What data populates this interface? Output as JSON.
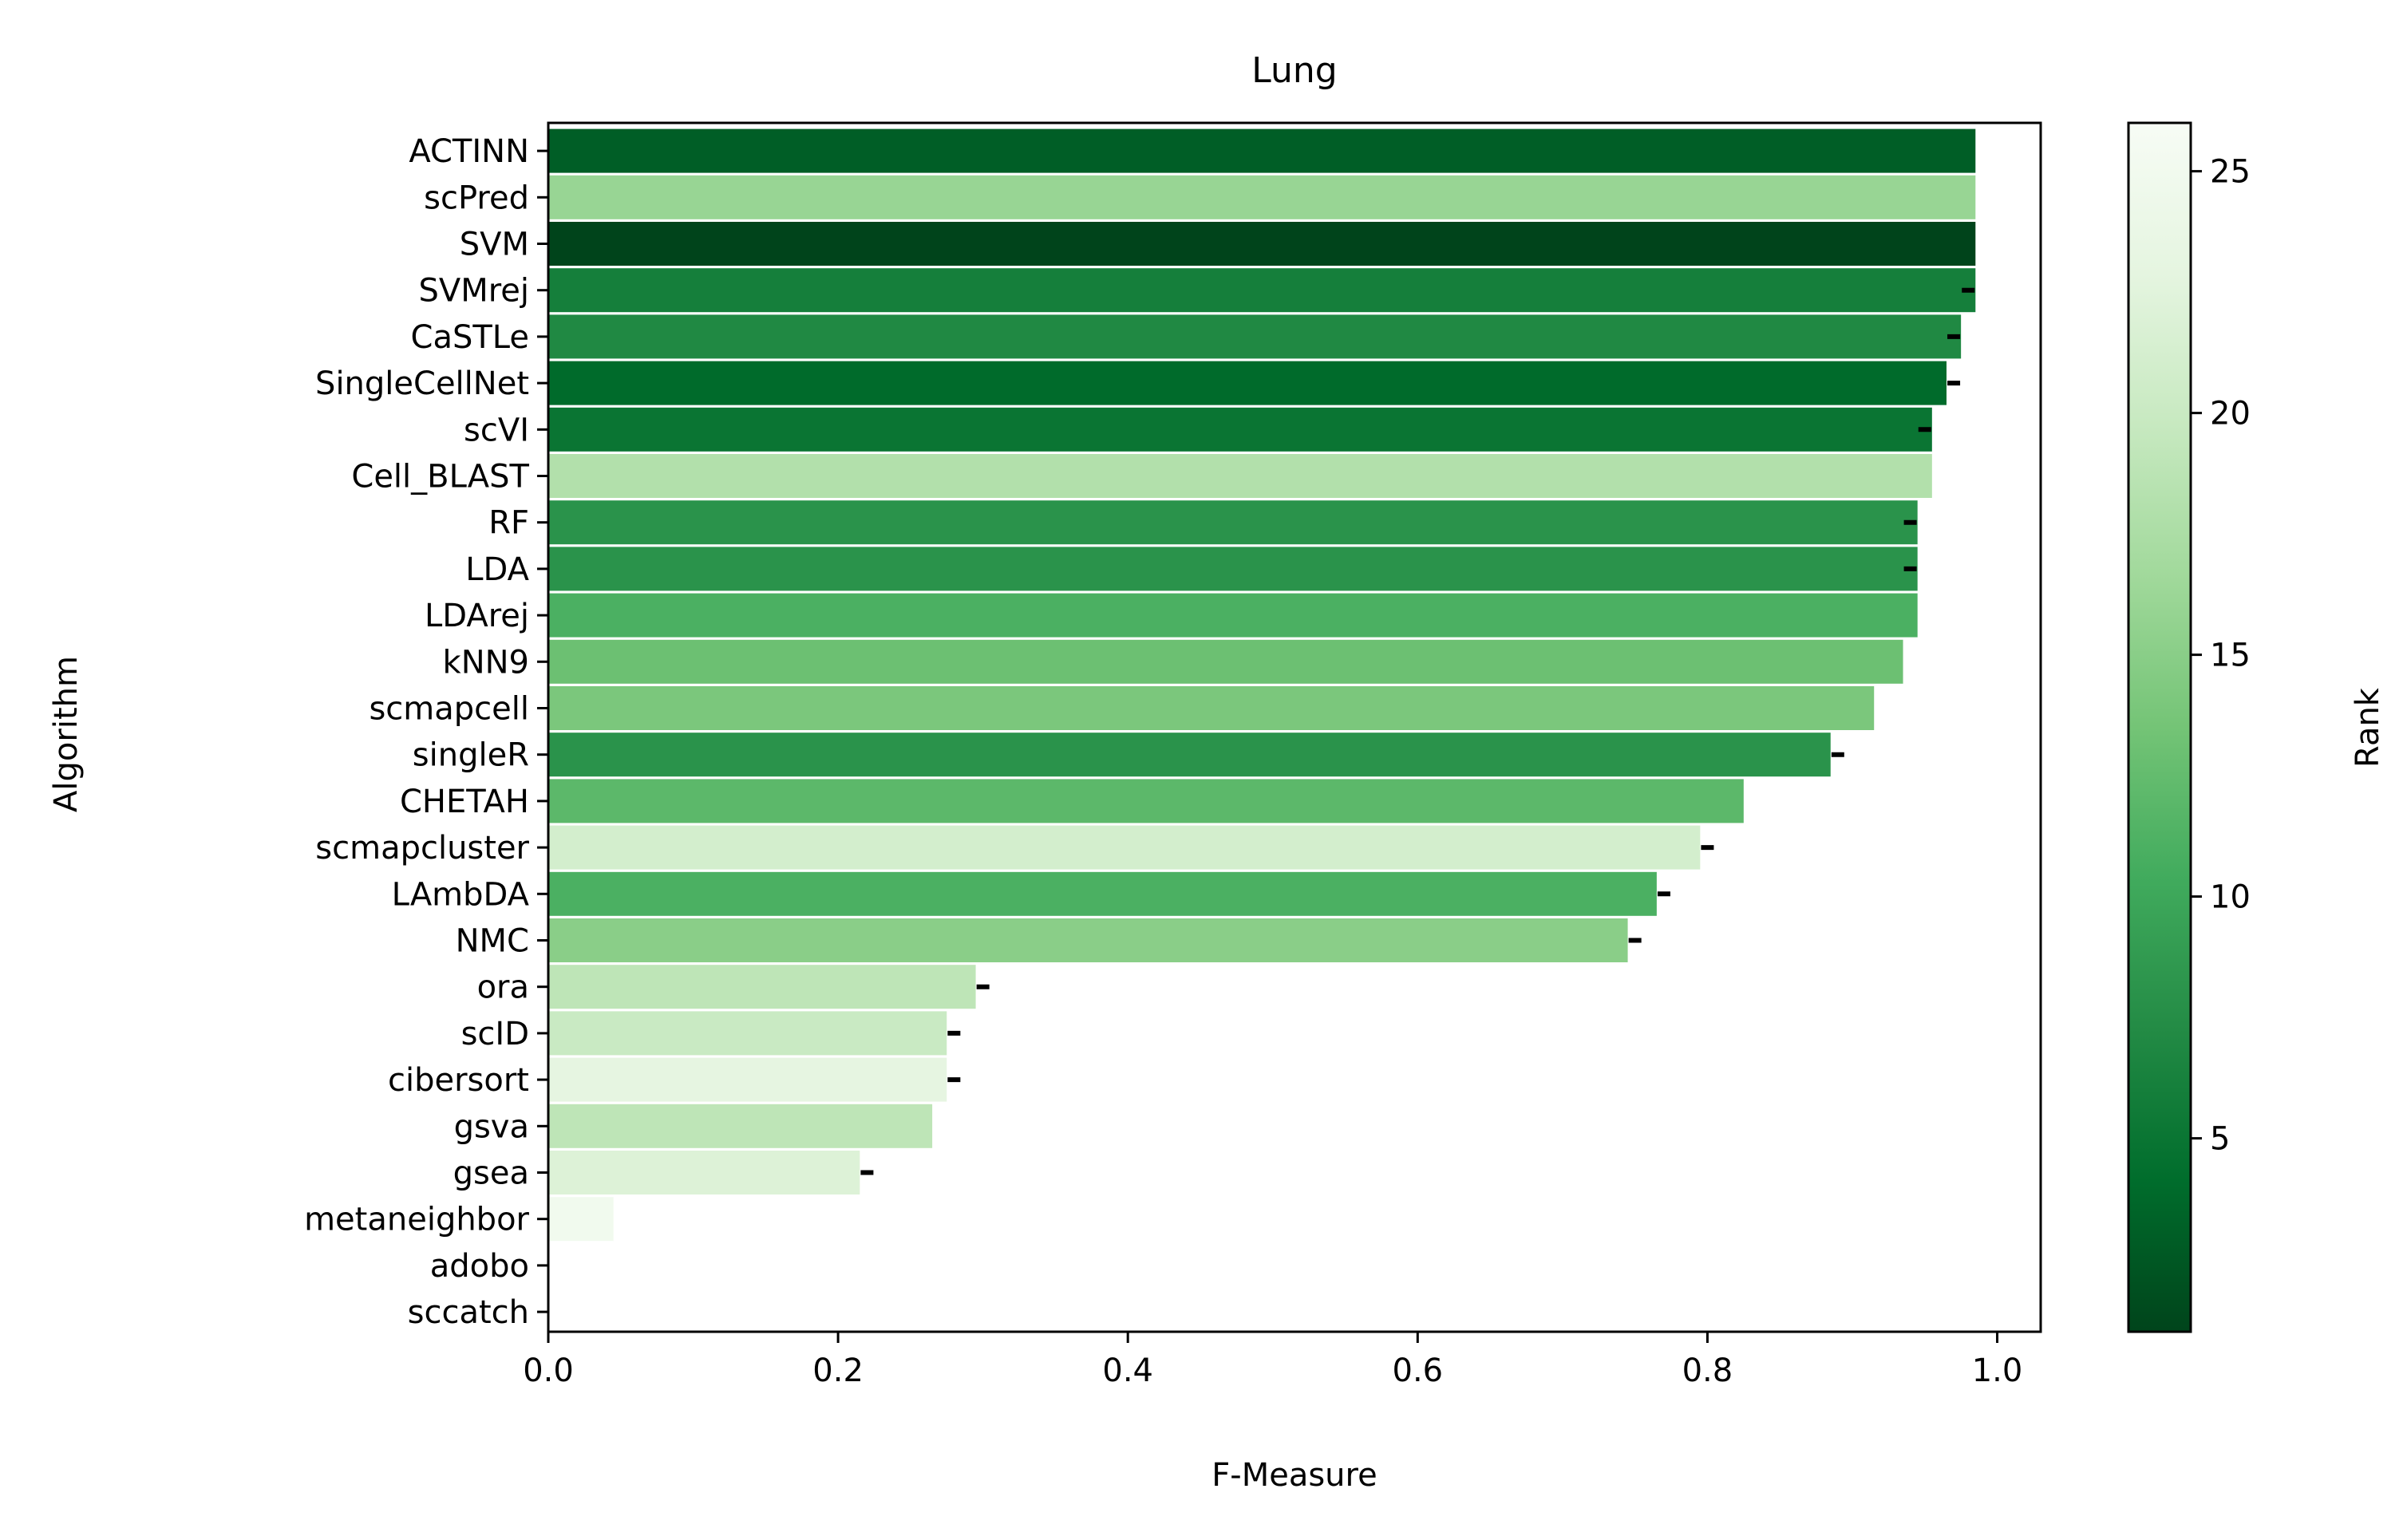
{
  "chart_data": {
    "type": "bar",
    "orientation": "horizontal",
    "title": "Lung",
    "xlabel": "F-Measure",
    "ylabel": "Algorithm",
    "xlim": [
      0.0,
      1.03
    ],
    "xticks": [
      "0.0",
      "0.2",
      "0.4",
      "0.6",
      "0.8",
      "1.0"
    ],
    "grid": false,
    "categories": [
      "ACTINN",
      "scPred",
      "SVM",
      "SVMrej",
      "CaSTLe",
      "SingleCellNet",
      "scVI",
      "Cell_BLAST",
      "RF",
      "LDA",
      "LDArej",
      "kNN9",
      "scmapcell",
      "singleR",
      "CHETAH",
      "scmapcluster",
      "LAmbDA",
      "NMC",
      "ora",
      "scID",
      "cibersort",
      "gsva",
      "gsea",
      "metaneighbor",
      "adobo",
      "sccatch"
    ],
    "values": [
      0.985,
      0.985,
      0.985,
      0.985,
      0.975,
      0.965,
      0.955,
      0.955,
      0.945,
      0.945,
      0.945,
      0.935,
      0.915,
      0.885,
      0.825,
      0.795,
      0.765,
      0.745,
      0.295,
      0.275,
      0.275,
      0.265,
      0.215,
      0.045,
      0.0,
      0.0
    ],
    "error_marks": [
      null,
      null,
      null,
      0.98,
      0.97,
      0.97,
      0.95,
      null,
      0.94,
      0.94,
      null,
      null,
      null,
      0.89,
      null,
      0.8,
      0.77,
      0.75,
      0.3,
      0.28,
      0.28,
      null,
      0.22,
      null,
      null,
      null
    ],
    "ranks": [
      3,
      16,
      1,
      6,
      7,
      4,
      5,
      18,
      8,
      8,
      11,
      13,
      14,
      8,
      12,
      21,
      11,
      15,
      19,
      20,
      23,
      19,
      22,
      25,
      26,
      26
    ],
    "colorbar": {
      "label": "Rank",
      "range": [
        1,
        26
      ],
      "ticks": [
        "5",
        "10",
        "15",
        "20",
        "25"
      ],
      "colormap": "Greens_r",
      "stops": [
        "#00441b",
        "#006d2c",
        "#238b45",
        "#41ab5d",
        "#74c476",
        "#a1d99b",
        "#c7e9c0",
        "#e5f5e0",
        "#f7fcf5"
      ]
    }
  }
}
